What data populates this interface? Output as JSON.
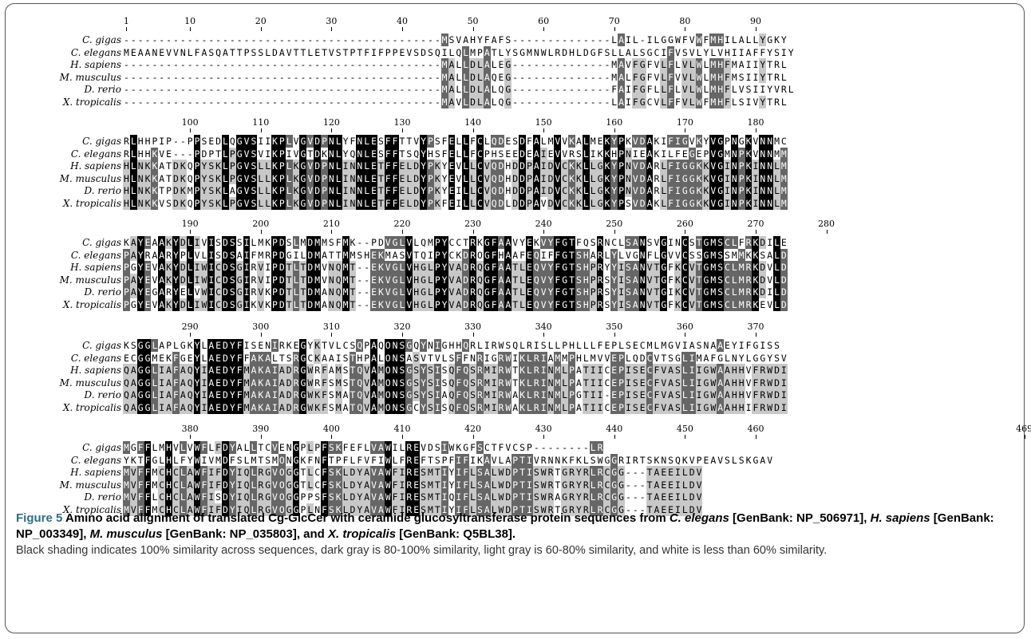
{
  "figure": {
    "blocks": [
      {
        "ruler": [
          "1",
          "10",
          "20",
          "30",
          "40",
          "50",
          "60",
          "70",
          "80",
          "90"
        ],
        "rows": [
          {
            "species": "C. gigas",
            "seq": "---------------------------------------------MSVAHYFAFS--------------LAIL-ILGGWFVWFMHILALLYGKY"
          },
          {
            "species": "C. elegans",
            "seq": "MEAANEVVNLFASQATTPSSLDAVTTLETVSTPTFIFPPEVSDSQILQLMPATLYSGMNWLRDHLDGFSLLALSGCIFVSVLYLVHIIAFFYSIY"
          },
          {
            "species": "H. sapiens",
            "seq": "---------------------------------------------MALLDLALEG--------------MAVFGFVLFLVLWLMHFMAIIYTRL"
          },
          {
            "species": "M. musculus",
            "seq": "---------------------------------------------MALLDLAQEG--------------MALFGFVLFVVLWLMHFMSIIYTRL"
          },
          {
            "species": "D. rerio",
            "seq": "---------------------------------------------MALLDLALQG--------------FAIFGFLLFLVLWLMHFLVSIIYVRL"
          },
          {
            "species": "X. tropicalis",
            "seq": "---------------------------------------------MAVLDLALQG--------------LAIFGCVLFFVLWFMHFLSIVYTRL"
          }
        ]
      },
      {
        "ruler": [
          "100",
          "110",
          "120",
          "130",
          "140",
          "150",
          "160",
          "170",
          "180"
        ],
        "rows": [
          {
            "species": "C. gigas",
            "seq": "RLHHPIP--PPSEDLQGVSIIKPLVGVDPNLYFNLESFFTTVYPSFELLFCLQDESDFALMVVKALMEKYPKVDAKIFIGVKYVGPNGKVNNMC"
          },
          {
            "species": "C. elegans",
            "seq": "RLHHKVE---PDPTLPGVSVIKPIVGTDKNLYQNLESFFTSQYHSFELLFCPHSEEDEAIEVVRSLIKKHPNIEAKILFEGEPVGMNPKVNNMM"
          },
          {
            "species": "H. sapiens",
            "seq": "HLNKKATDKQPYSKLPGVSLLKPLKGVDPNLINNLETFFELDYPKYEVLLCVQDHDDPAIDVCKKLLGKYPNVDARLFIGGKKVGINPKINNLM"
          },
          {
            "species": "M. musculus",
            "seq": "HLNKKATDKQPYSKLPGVSLLKPLKGVDPNLINNLETFFELDYPKYEVLLCVQDHDDPAIDVCKKLLGKYPNVDARLFIGGKKVGINPKINNLM"
          },
          {
            "species": "D. rerio",
            "seq": "HLNKKTPDKMPYSKLAGVSLLKPLKGVDPNLINNLETFFELDYPKYEILLCVQDHDDPAIDVCKKLLGKYPNVDARLFIGGKKVGINPKINNLM"
          },
          {
            "species": "X. tropicalis",
            "seq": "HLNKKVSDKQPYSKLPGVSLLKPLKGVDPNLINNLETFFELDYPKFEILLCVQDLDDPAVDVCKKLLGKYPSVDAKLFIGGKKVGINPKINNLM"
          }
        ]
      },
      {
        "ruler": [
          "190",
          "200",
          "210",
          "220",
          "230",
          "240",
          "250",
          "260",
          "270",
          "280"
        ],
        "rows": [
          {
            "species": "C. gigas",
            "seq": "KAYEAAKYDLIVISDSSILMKPDSLMDMMSFMK--PDVGLVLQMPYCCTRKGFAAVYEKVYFGTFQSRNCLSANSVGINCSTGMSCLFRKDILE"
          },
          {
            "species": "C. elegans",
            "seq": "PAYRAARYPLVLISDSAIFMRPDGILDMATTMMSHEKMASVTQIPYCKDROGFHAAFEQIFFGTSHARLYLVGNFLGVVCSSGMSSMMKKSALD"
          },
          {
            "species": "H. sapiens",
            "seq": "PGYEVAKYDLIWICDSGIRVIPDTLTDMVNQMT--EKVGLVHGLPYVADRQGFAATLEQVYFGTSHPRYYISANVTGFKCVTGMSCLMRKDVLD"
          },
          {
            "species": "M. musculus",
            "seq": "PAYEVAKYDLIWICDSGIRVIPDTLTDMVNQMT--EKVGLVHGLPYVADRQGFAATLEQVYFGTSHPRSYISANVTGFKCVTGMSCLMRKDVLD"
          },
          {
            "species": "D. rerio",
            "seq": "PAYEGARYELVWICDSGIRVKPDTLTDMANQMT--EKVGLVHGLPYVADRQGFAATLEQVYFGTSHPRSYISANVTGIKCVTGMSCLMRKDILD"
          },
          {
            "species": "X. tropicalis",
            "seq": "PGYEVAKYDLIWICDSGIKVKPDTLTDMANQMT--EKVGLVHGLPYVADRQGFAATLEQVYFGTSHPRSYISANVTGFKCVTGMSCLMRKEVLD"
          }
        ]
      },
      {
        "ruler": [
          "290",
          "300",
          "310",
          "320",
          "330",
          "340",
          "350",
          "360",
          "370"
        ],
        "rows": [
          {
            "species": "C. gigas",
            "seq": "KSGGLAPLGKYLAEDYFISENIRKEGYKTVLCSQPAQONSGQYNIGHHQRLIRWSQLRISLLPHLLLFEPLSECMLMGVIASNAAEYIFGISS"
          },
          {
            "species": "C. elegans",
            "seq": "ECGGMEKFGEYLAEDYFFAKALTSRGCKAAISTHPALONSASVTVLSFFNRIGRWIKLRIAMMPHLMVVEPLQDCVTSGLIMAFGLNYLGGYSV"
          },
          {
            "species": "H. sapiens",
            "seq": "QAGGLIAFAQYIAEDYFMAKAIADRGWRFAMSTQVAMONSGSYSISQFQSRMIRWTKLRINMLPATIICEPISECFVASLIIGWAAHHVFRWDI"
          },
          {
            "species": "M. musculus",
            "seq": "QAGGLIAFAQYIAEDYFMAKAIADRGWRFSMSTQVAMONSGSYSISQFQSRMIRWTKLRINMLPATIICEPISECFVASLIIGWAAHHVFRWDI"
          },
          {
            "species": "D. rerio",
            "seq": "QAGGLIAFAQYIAEDYFMAKAIADRGWKFSMATQVAMONSGSYSIAQFQSRMIRWAKLRINMLPGTII-EPISECFVASLIIGWAAHHVFRWDI"
          },
          {
            "species": "X. tropicalis",
            "seq": "QAGGLIAFAQYIAEDYFMAKAIADRGWKFSMATQVAMONSGCYSISQFQSRMIRWAKLRINMLPATIICEPISECFVASLIIGWAAHHIFRWDI"
          }
        ]
      },
      {
        "ruler": [
          "380",
          "390",
          "400",
          "410",
          "420",
          "430",
          "440",
          "450",
          "460",
          "469"
        ],
        "rows": [
          {
            "species": "C. gigas",
            "seq": "MGFFLMHVLVWFLFDYALLTCVENGPLPFSKFEFLVAWILREVDSIWKGFSCTFVCSP--------LR"
          },
          {
            "species": "C. elegans",
            "seq": "YKTFGLHLFYWIVMDFSLMTSMONGKFNFTPFLFVFIWLFREFTSPFIFIKAVLAPTIVRNNKFKLSWGGRIRTSKNSQKVPEAVSLSKGAV"
          },
          {
            "species": "H. sapiens",
            "seq": "MVFFMCHCLAWFIFDYIQLRGVOGGTLCFSKLDYAVAWFIRESMTIYIFLSALWDPTISWRTGRYRLRCGG---TAEEILDV"
          },
          {
            "species": "M. musculus",
            "seq": "MVFFMCHCLAWFIFDYIQLRGVOGGTLCFSKLDYAVAWFIRESMTIYIFLSALWDPTISWRTGRYRLRCGG---TAEEILDV"
          },
          {
            "species": "D. rerio",
            "seq": "MVFFLCHCLAWFISDYIQLRGVOGGPPSFSKLDYAVAWFIRESMTIQIFLSALWDPTISWRAGRYRLRCGG---TAEEILDV"
          },
          {
            "species": "X. tropicalis",
            "seq": "MVFFMCHCLAWFIFDYIQLRGVOGGPLNFSKLDYAVAWFIRESMTIYIFLSALWDPTISWRTGRYRLRCGG---TAEEILDV"
          }
        ]
      }
    ]
  },
  "caption": {
    "label": "Figure 5",
    "title_a": " Amino acid alignment of translated Cg-GlcCer with ceramide glucosyltransferase protein sequences from ",
    "sp1": "C. elegans",
    "title_b": " [GenBank: NP_506971], ",
    "sp2": "H. sapiens",
    "title_c": " [GenBank: NP_003349], ",
    "sp3": "M. musculus",
    "title_d": " [GenBank: NP_035803], and ",
    "sp4": "X. tropicalis",
    "title_e": " [GenBank: Q5BL38].",
    "body": "Black shading indicates 100% similarity across sequences, dark gray is 80-100% similarity, light gray is 60-80% similarity, and white is less than 60% similarity."
  },
  "colors": {
    "identical": "#000000",
    "dark_gray": "#666666",
    "light_gray": "#c8c8c8",
    "white": "#ffffff",
    "figure_label": "#2a6f8f"
  }
}
